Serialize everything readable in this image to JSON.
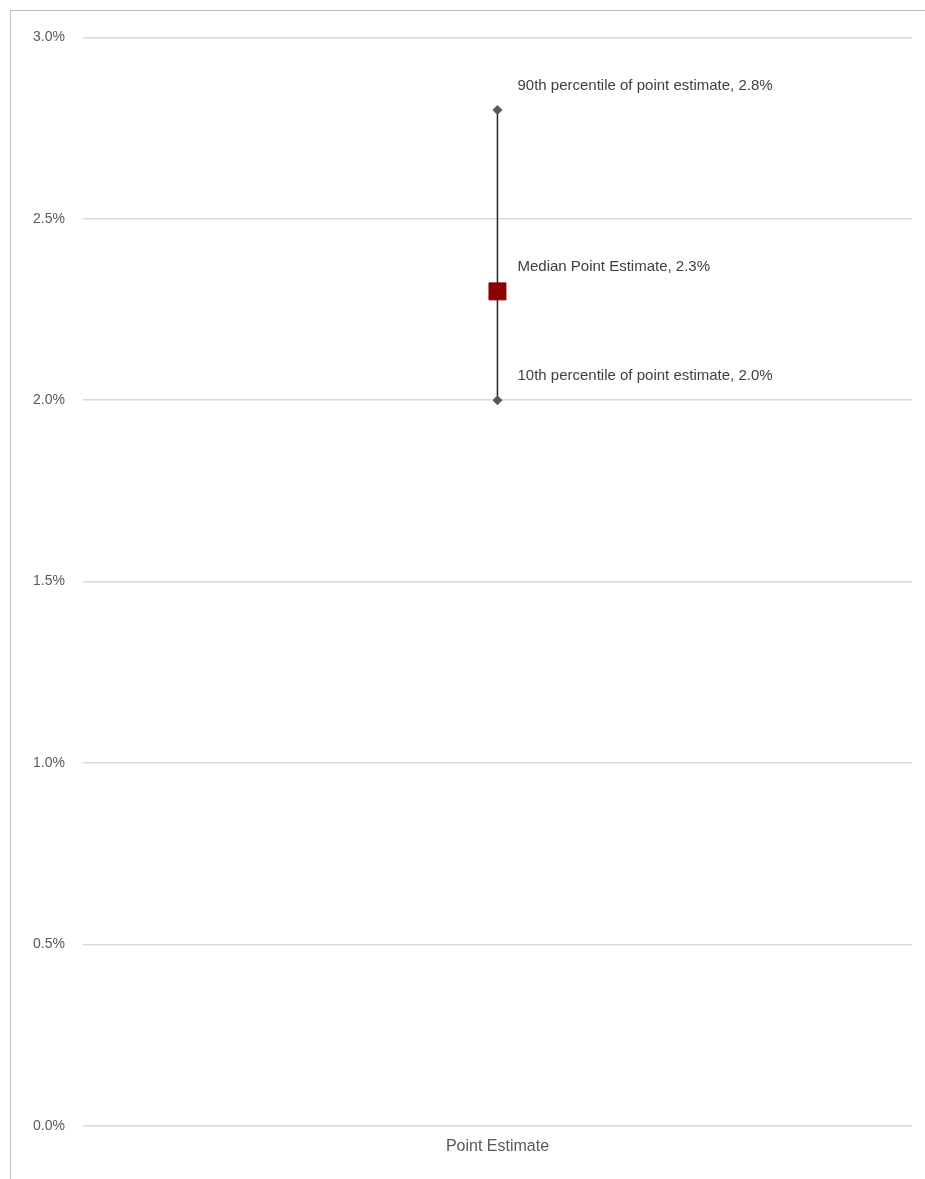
{
  "chart_data": {
    "type": "scatter",
    "categories": [
      "Point Estimate"
    ],
    "series": [
      {
        "color": "#8b0000",
        "values": [
          2.3
        ],
        "errors": [
          [
            2.0,
            2.8
          ]
        ]
      }
    ],
    "ylim": [
      0,
      3
    ],
    "yticks": [
      {
        "value": 0,
        "label": "0.0%"
      },
      {
        "value": 0.5,
        "label": "0.5%"
      },
      {
        "value": 1,
        "label": "1.0%"
      },
      {
        "value": 1.5,
        "label": "1.5%"
      },
      {
        "value": 2,
        "label": "2.0%"
      },
      {
        "value": 2.5,
        "label": "2.5%"
      },
      {
        "value": 3,
        "label": "3.0%"
      }
    ],
    "grid": "y",
    "legend": false,
    "marker": "square",
    "annotations": [
      {
        "text": "90th percentile of point estimate, 2.8%",
        "x": "Point Estimate",
        "y": 2.8
      },
      {
        "text": "Median Point Estimate, 2.3%",
        "x": "Point Estimate",
        "y": 2.3
      },
      {
        "text": "10th percentile of point estimate, 2.0%",
        "x": "Point Estimate",
        "y": 2.0
      }
    ]
  }
}
